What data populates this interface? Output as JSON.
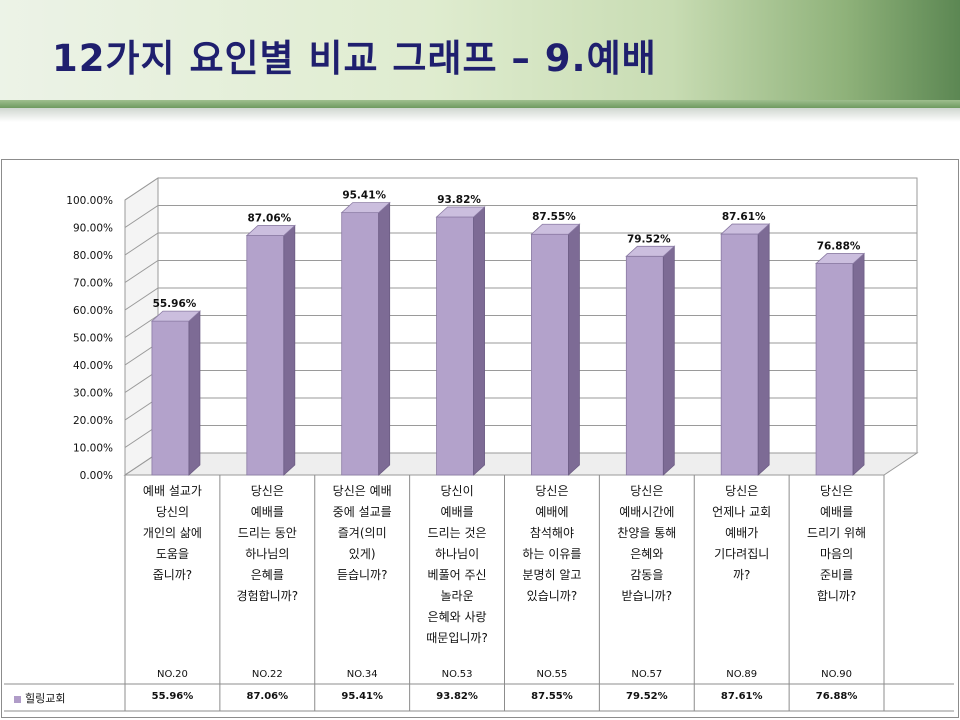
{
  "title": "12가지 요인별 비교 그래프 – 9.예배",
  "colors": {
    "bar_front": "#b3a2cb",
    "bar_side": "#7d6b95",
    "bar_top": "#cbbede",
    "title": "#1f1f6e",
    "legend": "#b09cc8"
  },
  "chart_data": {
    "type": "bar",
    "categories": [
      "NO.20",
      "NO.22",
      "NO.34",
      "NO.53",
      "NO.55",
      "NO.57",
      "NO.89",
      "NO.90"
    ],
    "questions": [
      [
        "예배 설교가",
        "당신의",
        "개인의 삶에",
        "도움을",
        "줍니까?"
      ],
      [
        "당신은",
        "예배를",
        "드리는 동안",
        "하나님의",
        "은혜를",
        "경험합니까?"
      ],
      [
        "당신은 예배",
        "중에 설교를",
        "즐겨(의미",
        "있게)",
        "듣습니까?"
      ],
      [
        "당신이",
        "예배를",
        "드리는 것은",
        "하나님이",
        "베풀어 주신",
        "놀라운",
        "은혜와 사랑",
        "때문입니까?"
      ],
      [
        "당신은",
        "예배에",
        "참석해야",
        "하는 이유를",
        "분명히 알고",
        "있습니까?"
      ],
      [
        "당신은",
        "예배시간에",
        "찬양을 통해",
        "은혜와",
        "감동을",
        "받습니까?"
      ],
      [
        "당신은",
        "언제나 교회",
        "예배가",
        "기다려집니",
        "까?"
      ],
      [
        "당신은",
        "예배를",
        "드리기 위해",
        "마음의",
        "준비를",
        "합니까?"
      ]
    ],
    "series": [
      {
        "name": "힐링교회",
        "values": [
          55.96,
          87.06,
          95.41,
          93.82,
          87.55,
          79.52,
          87.61,
          76.88
        ]
      }
    ],
    "value_labels": [
      "55.96%",
      "87.06%",
      "95.41%",
      "93.82%",
      "87.55%",
      "79.52%",
      "87.61%",
      "76.88%"
    ],
    "yticks": [
      "0.00%",
      "10.00%",
      "20.00%",
      "30.00%",
      "40.00%",
      "50.00%",
      "60.00%",
      "70.00%",
      "80.00%",
      "90.00%",
      "100.00%"
    ],
    "ylim": [
      0,
      100
    ],
    "grid": true,
    "legend_position": "bottom-left table"
  }
}
